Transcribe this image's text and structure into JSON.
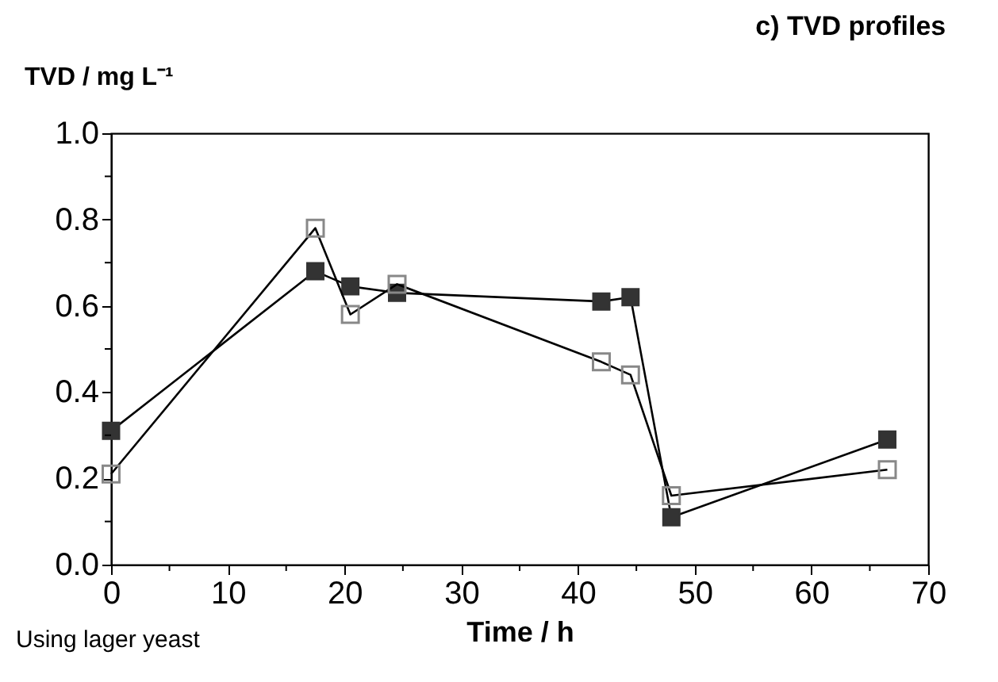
{
  "chart_data": {
    "type": "line",
    "title": "c) TVD profiles",
    "xlabel": "Time / h",
    "ylabel": "TVD / mg L⁻¹",
    "annotations": [
      "Using lager yeast"
    ],
    "series": [
      {
        "color": "#333333",
        "x": [
          0,
          17.5,
          20.5,
          24.5,
          42,
          44.5,
          48,
          66.5
        ],
        "values": [
          0.31,
          0.68,
          0.645,
          0.63,
          0.61,
          0.62,
          0.11,
          0.29
        ]
      },
      {
        "color": "#888888",
        "x": [
          0,
          17.5,
          20.5,
          24.5,
          42,
          44.5,
          48,
          66.5
        ],
        "values": [
          0.21,
          0.78,
          0.58,
          0.65,
          0.47,
          0.44,
          0.16,
          0.22
        ]
      }
    ],
    "xlim": [
      0,
      70
    ],
    "ylim": [
      0,
      1.0
    ],
    "xticks": [
      0,
      {
        "value": 5,
        "label": null
      },
      10,
      {
        "value": 15,
        "label": null
      },
      20,
      {
        "value": 25,
        "label": null
      },
      30,
      {
        "value": 35,
        "label": null
      },
      40,
      {
        "value": 45,
        "label": null
      },
      50,
      {
        "value": 55,
        "label": null
      },
      60,
      {
        "value": 65,
        "label": null
      },
      70
    ],
    "yticks": [
      {
        "value": 0,
        "label": "0.0"
      },
      {
        "value": 0.1,
        "label": null
      },
      {
        "value": 0.2,
        "label": "0.2"
      },
      {
        "value": 0.3,
        "label": null
      },
      {
        "value": 0.4,
        "label": "0.4"
      },
      {
        "value": 0.5,
        "label": null
      },
      {
        "value": 0.6,
        "label": "0.6"
      },
      {
        "value": 0.7,
        "label": null
      },
      {
        "value": 0.8,
        "label": "0.8"
      },
      {
        "value": 0.9,
        "label": null
      },
      {
        "value": 1.0,
        "label": "1.0"
      }
    ],
    "grid": false,
    "marker": "square",
    "line_style": "solid"
  }
}
